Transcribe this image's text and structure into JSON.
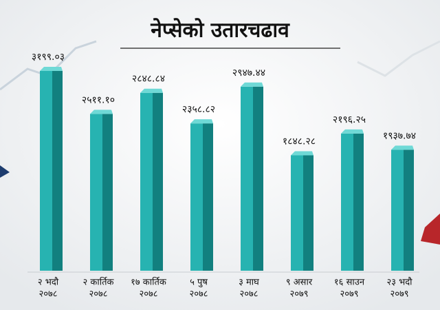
{
  "chart_data": {
    "type": "bar",
    "title": "नेप्सेको उतारचढाव",
    "categories": [
      [
        "२ भदौ",
        "२०७८"
      ],
      [
        "२ कार्तिक",
        "२०७८"
      ],
      [
        "१७ कार्तिक",
        "२०७८"
      ],
      [
        "५ पुष",
        "२०७८"
      ],
      [
        "३ माघ",
        "२०७८"
      ],
      [
        "९ असार",
        "२०७९"
      ],
      [
        "१६ साउन",
        "२०७९"
      ],
      [
        "२३ भदौ",
        "२०७९"
      ]
    ],
    "values": [
      3199.03,
      2511.1,
      2848.84,
      2358.82,
      2947.44,
      1848.28,
      2196.25,
      1937.74
    ],
    "value_labels": [
      "३१९९.०३",
      "२५११.१०",
      "२८४८.८४",
      "२३५८.८२",
      "२९४७.४४",
      "१८४८.२८",
      "२१९६.२५",
      "१९३७.७४"
    ],
    "color": "#27b3b1"
  }
}
